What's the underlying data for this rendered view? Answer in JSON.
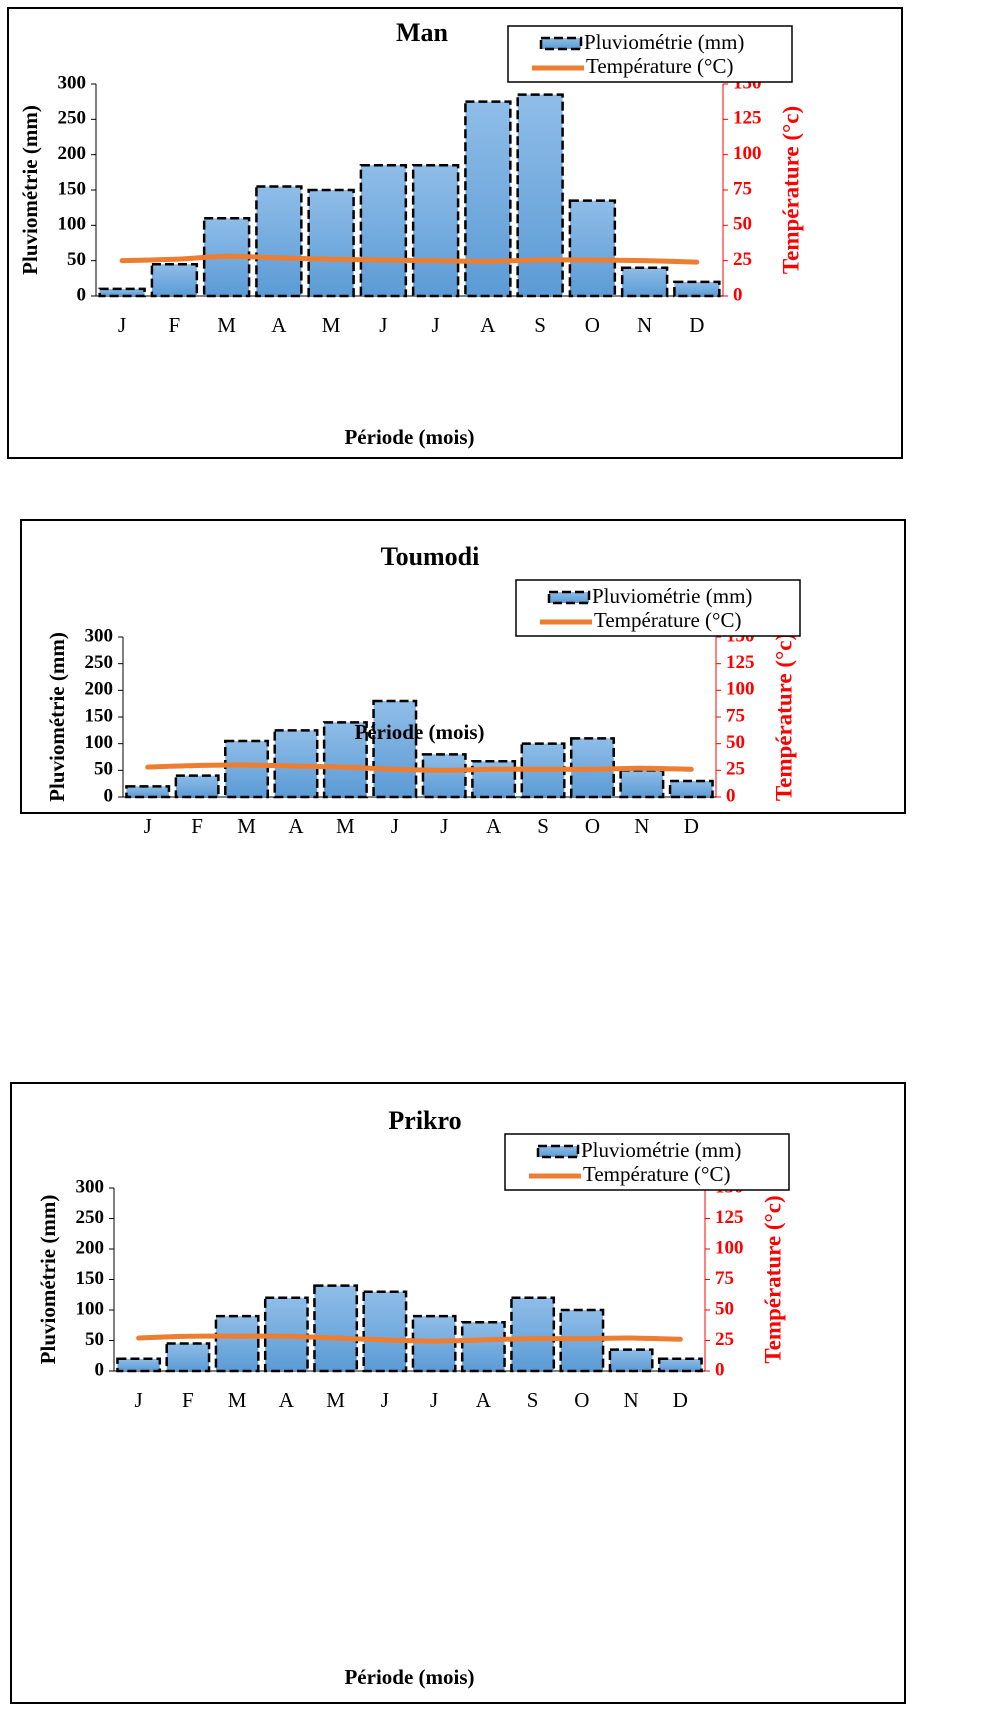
{
  "legend": {
    "rain": "Pluviométrie (mm)",
    "temp": "Température (°C)"
  },
  "colors": {
    "bar": "#5b9bd5",
    "bar_light": "#8fbde8",
    "line": "#ed7d31",
    "right_axis": "#ff0000"
  },
  "chart_data": [
    {
      "type": "bar",
      "title": "Man",
      "xlabel": "Période (mois)",
      "ylabel": "Pluviométrie (mm)",
      "y2label": "Température (°c)",
      "categories": [
        "J",
        "F",
        "M",
        "A",
        "M",
        "J",
        "J",
        "A",
        "S",
        "O",
        "N",
        "D"
      ],
      "ylim": [
        0,
        300
      ],
      "y2lim": [
        0,
        150
      ],
      "yticks": [
        "0",
        "50",
        "100",
        "150",
        "200",
        "250",
        "300"
      ],
      "y2ticks": [
        "0",
        "25",
        "50",
        "75",
        "100",
        "125",
        "150"
      ],
      "series": [
        {
          "name": "Pluviométrie (mm)",
          "axis": "left",
          "type": "bar",
          "values": [
            10,
            45,
            110,
            155,
            150,
            185,
            185,
            275,
            285,
            135,
            40,
            20
          ]
        },
        {
          "name": "Température (°C)",
          "axis": "right",
          "type": "line",
          "values": [
            25,
            26,
            28,
            27,
            26,
            25.5,
            25,
            24.5,
            25.5,
            25.5,
            25,
            24
          ]
        }
      ]
    },
    {
      "type": "bar",
      "title": "Toumodi",
      "xlabel": "Période (mois)",
      "ylabel": "Pluviométrie  (mm)",
      "y2label": "Température (°c)",
      "categories": [
        "J",
        "F",
        "M",
        "A",
        "M",
        "J",
        "J",
        "A",
        "S",
        "O",
        "N",
        "D"
      ],
      "ylim": [
        0,
        300
      ],
      "y2lim": [
        0,
        150
      ],
      "yticks": [
        "0",
        "50",
        "100",
        "150",
        "200",
        "250",
        "300"
      ],
      "y2ticks": [
        "0",
        "25",
        "50",
        "75",
        "100",
        "125",
        "150"
      ],
      "series": [
        {
          "name": "Pluviométrie (mm)",
          "axis": "left",
          "type": "bar",
          "values": [
            20,
            40,
            105,
            125,
            140,
            180,
            80,
            67,
            100,
            110,
            50,
            30
          ]
        },
        {
          "name": "Température (°C)",
          "axis": "right",
          "type": "line",
          "values": [
            28,
            29.5,
            30,
            29,
            28,
            26,
            25,
            26,
            26,
            26,
            27,
            26
          ]
        }
      ]
    },
    {
      "type": "bar",
      "title": "Prikro",
      "xlabel": "Période (mois)",
      "ylabel": "Pluviométrie  (mm)",
      "y2label": "Température (°c)",
      "categories": [
        "J",
        "F",
        "M",
        "A",
        "M",
        "J",
        "J",
        "A",
        "S",
        "O",
        "N",
        "D"
      ],
      "ylim": [
        0,
        300
      ],
      "y2lim": [
        0,
        150
      ],
      "yticks": [
        "0",
        "50",
        "100",
        "150",
        "200",
        "250",
        "300"
      ],
      "y2ticks": [
        "0",
        "25",
        "50",
        "75",
        "100",
        "125",
        "150"
      ],
      "series": [
        {
          "name": "Pluviométrie (mm)",
          "axis": "left",
          "type": "bar",
          "values": [
            20,
            45,
            90,
            120,
            140,
            130,
            90,
            80,
            120,
            100,
            35,
            20
          ]
        },
        {
          "name": "Température (°C)",
          "axis": "right",
          "type": "line",
          "values": [
            27,
            28.5,
            28.5,
            28.5,
            27,
            25.5,
            24.5,
            25.5,
            26.5,
            26.5,
            27,
            26
          ]
        }
      ]
    }
  ]
}
